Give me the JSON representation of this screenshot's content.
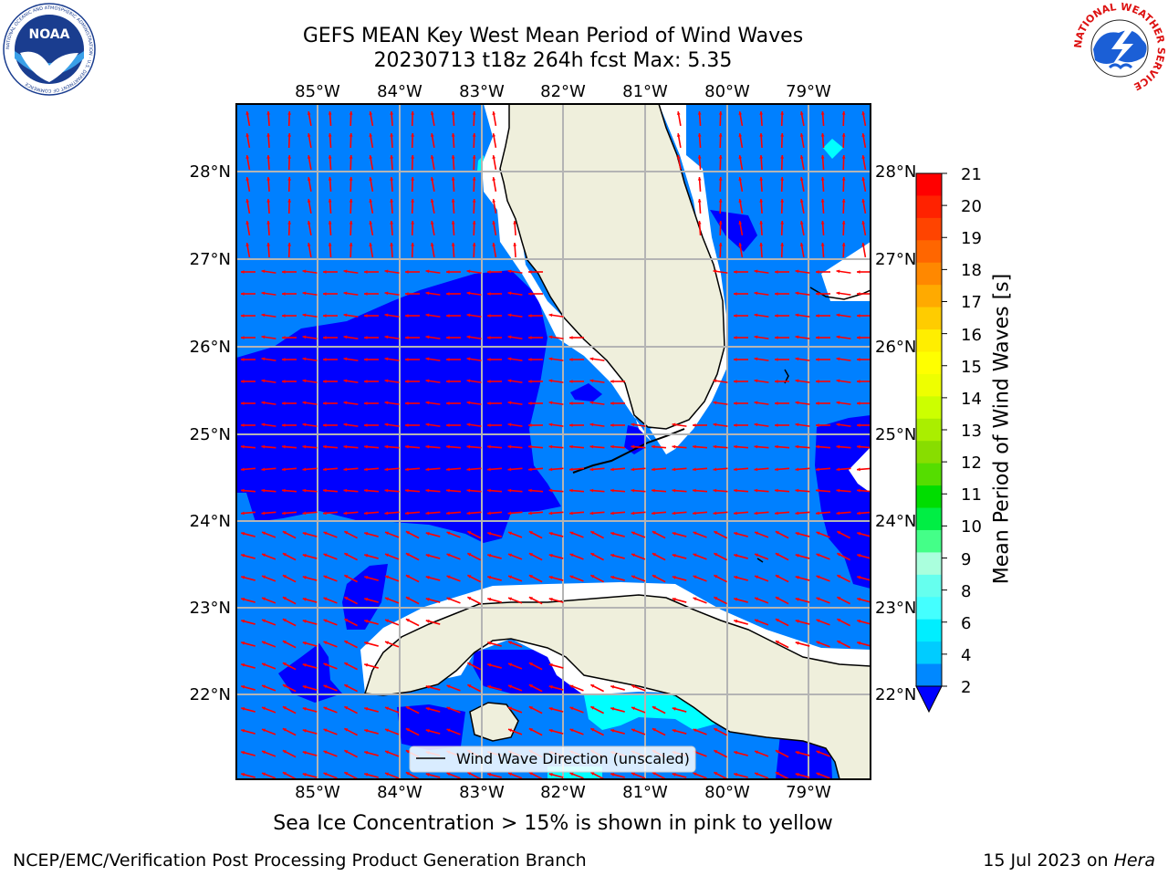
{
  "header": {
    "title_line1": "GEFS MEAN Key West Mean Period of Wind Waves",
    "title_line2": "20230713 t18z 264h fcst   Max: 5.35"
  },
  "logos": {
    "noaa_text": "NOAA",
    "noaa_ring_text": "NATIONAL OCEANIC AND ATMOSPHERIC ADMINISTRATION · U.S. DEPARTMENT OF COMMERCE",
    "nws_ring_text": "NATIONAL WEATHER SERVICE"
  },
  "map": {
    "lon_ticks": [
      "85°W",
      "84°W",
      "83°W",
      "82°W",
      "81°W",
      "80°W",
      "79°W"
    ],
    "lat_ticks": [
      "28°N",
      "27°N",
      "26°N",
      "25°N",
      "24°N",
      "23°N",
      "22°N"
    ],
    "legend_label": "Wind Wave Direction (unscaled)",
    "colors": {
      "ocean_dark": "#0000ff",
      "ocean_mid": "#0080ff",
      "cyan": "#00ffff",
      "land": "#efefdc",
      "arrow": "#ff0000",
      "grid": "#b4b4b4"
    }
  },
  "colorbar": {
    "label": "Mean Period of Wind Waves [s]",
    "ticks": [
      "21",
      "20",
      "19",
      "18",
      "17",
      "16",
      "15",
      "14",
      "13",
      "12",
      "11",
      "10",
      "9",
      "8",
      "6",
      "4",
      "2"
    ],
    "colors_top_to_bottom": [
      "#ff0000",
      "#ff2200",
      "#ff4400",
      "#ff6600",
      "#ff8800",
      "#ffaa00",
      "#ffcc00",
      "#ffee00",
      "#ffff00",
      "#eeff00",
      "#ccff00",
      "#aaee00",
      "#88dd00",
      "#55dd00",
      "#00dd00",
      "#00ee44",
      "#44ff88",
      "#aaffdd",
      "#66ffee",
      "#44ffff",
      "#00eeff",
      "#00ccff",
      "#0088ff"
    ],
    "extend_color": "#0000ff"
  },
  "notes": {
    "sea_ice": "Sea Ice Concentration > 15% is shown in pink to yellow"
  },
  "footer": {
    "left": "NCEP/EMC/Verification Post Processing Product Generation Branch",
    "right_prefix": "15 Jul 2023 on ",
    "right_host": "Hera"
  }
}
